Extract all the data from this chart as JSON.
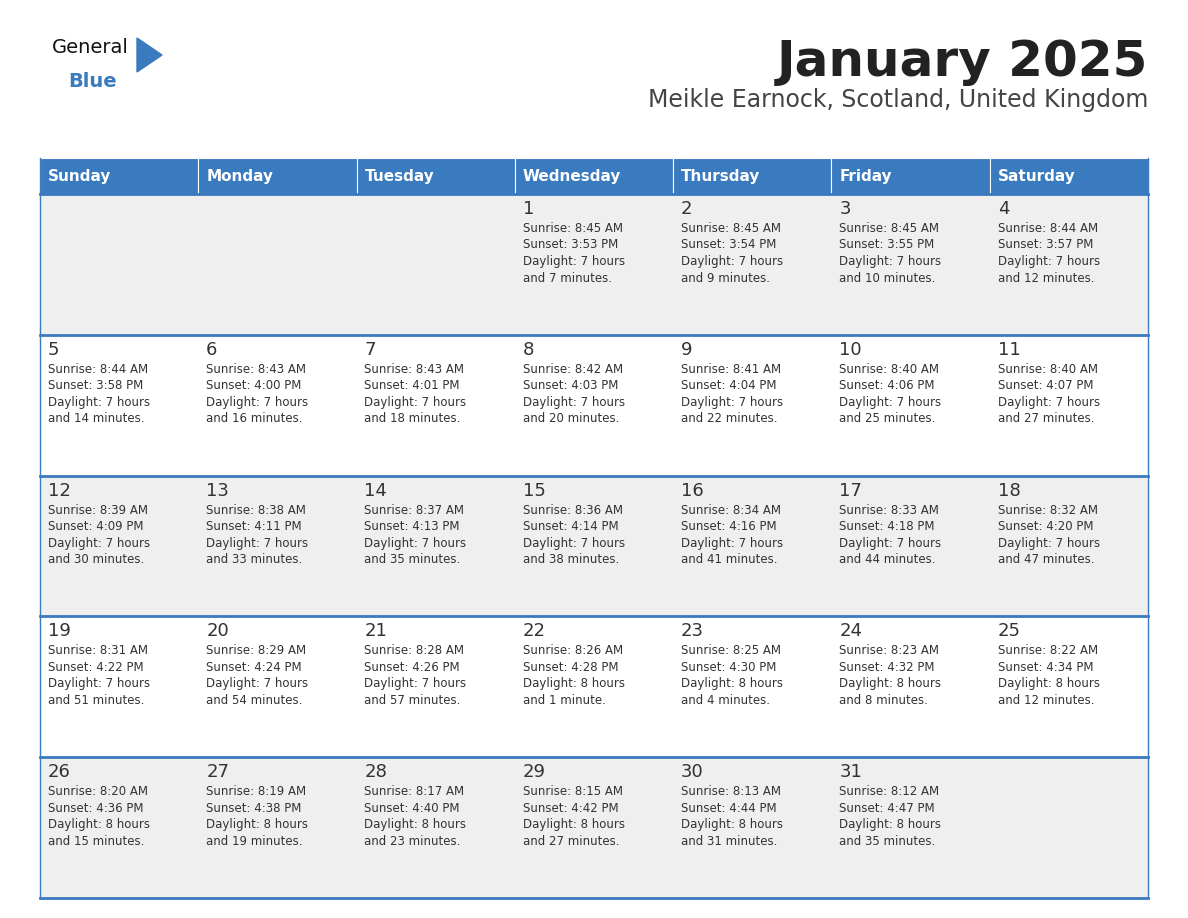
{
  "title": "January 2025",
  "subtitle": "Meikle Earnock, Scotland, United Kingdom",
  "days_of_week": [
    "Sunday",
    "Monday",
    "Tuesday",
    "Wednesday",
    "Thursday",
    "Friday",
    "Saturday"
  ],
  "header_bg": "#3a7abf",
  "header_text_color": "#ffffff",
  "row_bg_odd": "#efefef",
  "row_bg_even": "#ffffff",
  "cell_text_color": "#333333",
  "day_num_color": "#333333",
  "border_color": "#3a7abf",
  "title_color": "#222222",
  "subtitle_color": "#444444",
  "calendar_data": [
    [
      null,
      null,
      null,
      {
        "day": 1,
        "sunrise": "8:45 AM",
        "sunset": "3:53 PM",
        "daylight": "7 hours",
        "daylight2": "and 7 minutes."
      },
      {
        "day": 2,
        "sunrise": "8:45 AM",
        "sunset": "3:54 PM",
        "daylight": "7 hours",
        "daylight2": "and 9 minutes."
      },
      {
        "day": 3,
        "sunrise": "8:45 AM",
        "sunset": "3:55 PM",
        "daylight": "7 hours",
        "daylight2": "and 10 minutes."
      },
      {
        "day": 4,
        "sunrise": "8:44 AM",
        "sunset": "3:57 PM",
        "daylight": "7 hours",
        "daylight2": "and 12 minutes."
      }
    ],
    [
      {
        "day": 5,
        "sunrise": "8:44 AM",
        "sunset": "3:58 PM",
        "daylight": "7 hours",
        "daylight2": "and 14 minutes."
      },
      {
        "day": 6,
        "sunrise": "8:43 AM",
        "sunset": "4:00 PM",
        "daylight": "7 hours",
        "daylight2": "and 16 minutes."
      },
      {
        "day": 7,
        "sunrise": "8:43 AM",
        "sunset": "4:01 PM",
        "daylight": "7 hours",
        "daylight2": "and 18 minutes."
      },
      {
        "day": 8,
        "sunrise": "8:42 AM",
        "sunset": "4:03 PM",
        "daylight": "7 hours",
        "daylight2": "and 20 minutes."
      },
      {
        "day": 9,
        "sunrise": "8:41 AM",
        "sunset": "4:04 PM",
        "daylight": "7 hours",
        "daylight2": "and 22 minutes."
      },
      {
        "day": 10,
        "sunrise": "8:40 AM",
        "sunset": "4:06 PM",
        "daylight": "7 hours",
        "daylight2": "and 25 minutes."
      },
      {
        "day": 11,
        "sunrise": "8:40 AM",
        "sunset": "4:07 PM",
        "daylight": "7 hours",
        "daylight2": "and 27 minutes."
      }
    ],
    [
      {
        "day": 12,
        "sunrise": "8:39 AM",
        "sunset": "4:09 PM",
        "daylight": "7 hours",
        "daylight2": "and 30 minutes."
      },
      {
        "day": 13,
        "sunrise": "8:38 AM",
        "sunset": "4:11 PM",
        "daylight": "7 hours",
        "daylight2": "and 33 minutes."
      },
      {
        "day": 14,
        "sunrise": "8:37 AM",
        "sunset": "4:13 PM",
        "daylight": "7 hours",
        "daylight2": "and 35 minutes."
      },
      {
        "day": 15,
        "sunrise": "8:36 AM",
        "sunset": "4:14 PM",
        "daylight": "7 hours",
        "daylight2": "and 38 minutes."
      },
      {
        "day": 16,
        "sunrise": "8:34 AM",
        "sunset": "4:16 PM",
        "daylight": "7 hours",
        "daylight2": "and 41 minutes."
      },
      {
        "day": 17,
        "sunrise": "8:33 AM",
        "sunset": "4:18 PM",
        "daylight": "7 hours",
        "daylight2": "and 44 minutes."
      },
      {
        "day": 18,
        "sunrise": "8:32 AM",
        "sunset": "4:20 PM",
        "daylight": "7 hours",
        "daylight2": "and 47 minutes."
      }
    ],
    [
      {
        "day": 19,
        "sunrise": "8:31 AM",
        "sunset": "4:22 PM",
        "daylight": "7 hours",
        "daylight2": "and 51 minutes."
      },
      {
        "day": 20,
        "sunrise": "8:29 AM",
        "sunset": "4:24 PM",
        "daylight": "7 hours",
        "daylight2": "and 54 minutes."
      },
      {
        "day": 21,
        "sunrise": "8:28 AM",
        "sunset": "4:26 PM",
        "daylight": "7 hours",
        "daylight2": "and 57 minutes."
      },
      {
        "day": 22,
        "sunrise": "8:26 AM",
        "sunset": "4:28 PM",
        "daylight": "8 hours",
        "daylight2": "and 1 minute."
      },
      {
        "day": 23,
        "sunrise": "8:25 AM",
        "sunset": "4:30 PM",
        "daylight": "8 hours",
        "daylight2": "and 4 minutes."
      },
      {
        "day": 24,
        "sunrise": "8:23 AM",
        "sunset": "4:32 PM",
        "daylight": "8 hours",
        "daylight2": "and 8 minutes."
      },
      {
        "day": 25,
        "sunrise": "8:22 AM",
        "sunset": "4:34 PM",
        "daylight": "8 hours",
        "daylight2": "and 12 minutes."
      }
    ],
    [
      {
        "day": 26,
        "sunrise": "8:20 AM",
        "sunset": "4:36 PM",
        "daylight": "8 hours",
        "daylight2": "and 15 minutes."
      },
      {
        "day": 27,
        "sunrise": "8:19 AM",
        "sunset": "4:38 PM",
        "daylight": "8 hours",
        "daylight2": "and 19 minutes."
      },
      {
        "day": 28,
        "sunrise": "8:17 AM",
        "sunset": "4:40 PM",
        "daylight": "8 hours",
        "daylight2": "and 23 minutes."
      },
      {
        "day": 29,
        "sunrise": "8:15 AM",
        "sunset": "4:42 PM",
        "daylight": "8 hours",
        "daylight2": "and 27 minutes."
      },
      {
        "day": 30,
        "sunrise": "8:13 AM",
        "sunset": "4:44 PM",
        "daylight": "8 hours",
        "daylight2": "and 31 minutes."
      },
      {
        "day": 31,
        "sunrise": "8:12 AM",
        "sunset": "4:47 PM",
        "daylight": "8 hours",
        "daylight2": "and 35 minutes."
      },
      null
    ]
  ]
}
